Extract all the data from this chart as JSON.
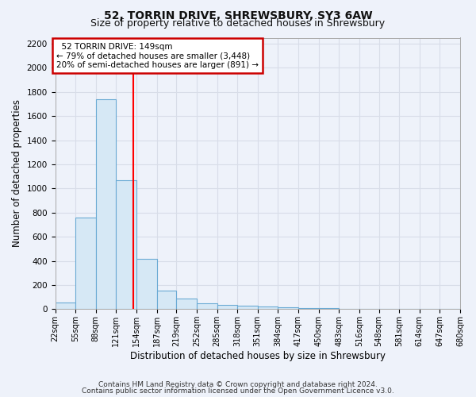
{
  "title": "52, TORRIN DRIVE, SHREWSBURY, SY3 6AW",
  "subtitle": "Size of property relative to detached houses in Shrewsbury",
  "xlabel": "Distribution of detached houses by size in Shrewsbury",
  "ylabel": "Number of detached properties",
  "footnote1": "Contains HM Land Registry data © Crown copyright and database right 2024.",
  "footnote2": "Contains public sector information licensed under the Open Government Licence v3.0.",
  "bin_edges": [
    22,
    55,
    88,
    121,
    154,
    187,
    219,
    252,
    285,
    318,
    351,
    384,
    417,
    450,
    483,
    516,
    548,
    581,
    614,
    647,
    680
  ],
  "bar_heights": [
    55,
    760,
    1740,
    1070,
    420,
    155,
    85,
    45,
    35,
    30,
    20,
    15,
    10,
    8,
    5,
    5,
    3,
    3,
    2,
    2
  ],
  "bar_color": "#d6e8f5",
  "bar_edge_color": "#6aaad4",
  "red_line_x": 149,
  "ylim": [
    0,
    2250
  ],
  "yticks": [
    0,
    200,
    400,
    600,
    800,
    1000,
    1200,
    1400,
    1600,
    1800,
    2000,
    2200
  ],
  "annotation_text": "  52 TORRIN DRIVE: 149sqm\n← 79% of detached houses are smaller (3,448)\n20% of semi-detached houses are larger (891) →",
  "annotation_box_color": "#ffffff",
  "annotation_box_edge_color": "#cc0000",
  "background_color": "#eef2fa",
  "grid_color": "#d8dde8",
  "title_fontsize": 10,
  "subtitle_fontsize": 9,
  "label_fontsize": 8.5,
  "tick_fontsize": 7.5,
  "footnote_fontsize": 6.5
}
